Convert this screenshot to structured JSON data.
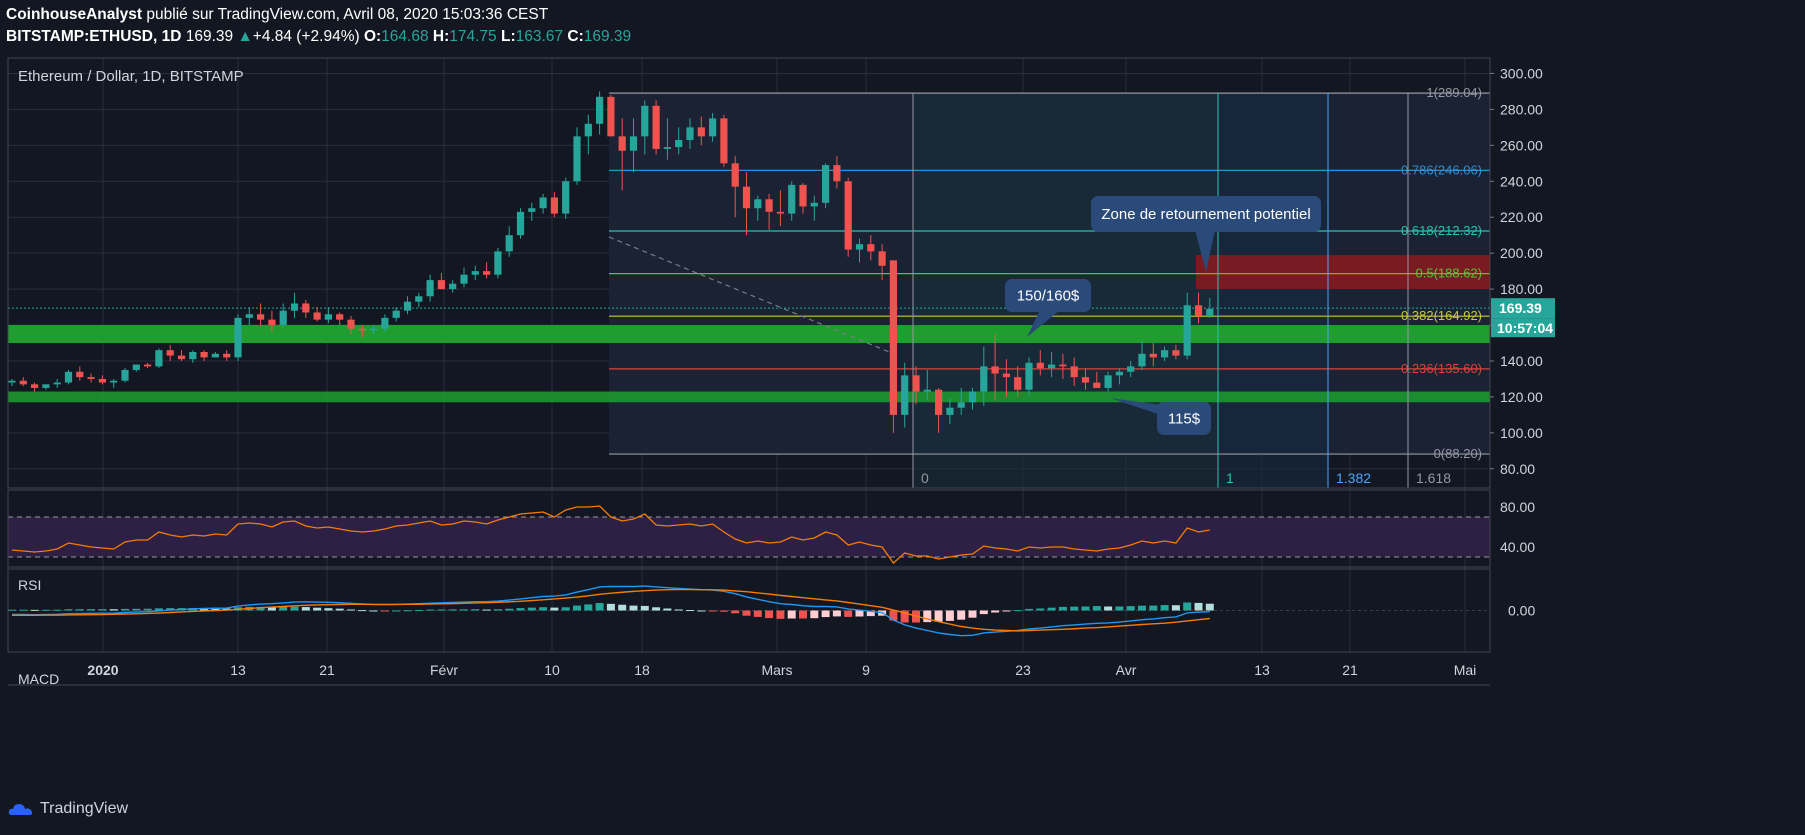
{
  "header": {
    "publisher": "CoinhouseAnalyst",
    "published_text": "publié sur TradingView.com, Avril 08, 2020 15:03:36 CEST",
    "symbol": "BITSTAMP:ETHUSD, 1D",
    "last": "169.39",
    "change_arrow": "▲",
    "change": "+4.84 (+2.94%)",
    "o_label": "O:",
    "o_value": "164.68",
    "h_label": "H:",
    "h_value": "174.75",
    "l_label": "L:",
    "l_value": "163.67",
    "c_label": "C:",
    "c_value": "169.39"
  },
  "pane_titles": {
    "main": "Ethereum / Dollar, 1D, BITSTAMP",
    "rsi": "RSI",
    "macd": "MACD"
  },
  "price_axis": {
    "ticks": [
      "300.00",
      "280.00",
      "260.00",
      "240.00",
      "220.00",
      "200.00",
      "180.00",
      "160.00",
      "140.00",
      "120.00",
      "100.00",
      "80.00"
    ],
    "last_price_label": "169.39",
    "countdown_label": "10:57:04"
  },
  "rsi_axis": {
    "ticks": [
      "80.00",
      "40.00"
    ]
  },
  "macd_axis": {
    "ticks": [
      "0.00"
    ]
  },
  "time_axis": {
    "labels": [
      "2020",
      "13",
      "21",
      "Févr",
      "10",
      "18",
      "Mars",
      "9",
      "23",
      "Avr",
      "13",
      "21",
      "Mai"
    ]
  },
  "fib_levels": [
    {
      "label": "1(289.04)",
      "price": 289.04,
      "color": "#9598a1"
    },
    {
      "label": "0.786(246.06)",
      "price": 246.06,
      "color": "#2e8fd6"
    },
    {
      "label": "0.618(212.32)",
      "price": 212.32,
      "color": "#26c6b0"
    },
    {
      "label": "0.5(188.62)",
      "price": 188.62,
      "color": "#5bbf3a"
    },
    {
      "label": "0.382(164.92)",
      "price": 164.92,
      "color": "#c8c83a"
    },
    {
      "label": "0.236(135.60)",
      "price": 135.6,
      "color": "#d9443c"
    },
    {
      "label": "0(88.20)",
      "price": 88.2,
      "color": "#9598a1"
    }
  ],
  "fib_time": [
    {
      "label": "0",
      "color": "#9598a1"
    },
    {
      "label": "1",
      "color": "#26c6b0"
    },
    {
      "label": "1.382",
      "color": "#4da3ff"
    },
    {
      "label": "1.618",
      "color": "#9598a1"
    }
  ],
  "annotations": {
    "zone_callout": "Zone de retournement potentiel",
    "resistance_callout": "150/160$",
    "support_callout": "115$"
  },
  "colors": {
    "bull": "#26a69a",
    "bear": "#ef5350",
    "support_zone": "#1f9e2f",
    "reversal_zone": "#8b1a1f",
    "callout": "#2a4a7a",
    "rsi_line": "#f57c00",
    "macd_line": "#2196f3",
    "signal_line": "#f57c00"
  },
  "footer": {
    "brand": "TradingView"
  },
  "chart_data": {
    "type": "candlestick",
    "title": "Ethereum / Dollar, 1D, BITSTAMP",
    "x_range": [
      "2019-12-24",
      "2020-04-08"
    ],
    "ylim": [
      75,
      310
    ],
    "support_zones": [
      [
        150,
        160
      ],
      [
        117,
        123
      ]
    ],
    "reversal_zone": [
      180,
      199
    ],
    "candles": [
      [
        128,
        130,
        126,
        129
      ],
      [
        129,
        131,
        126,
        127
      ],
      [
        127,
        128,
        123,
        125
      ],
      [
        125,
        127,
        124,
        127
      ],
      [
        127,
        130,
        125,
        128
      ],
      [
        128,
        135,
        127,
        134
      ],
      [
        134,
        137,
        129,
        131
      ],
      [
        131,
        133,
        128,
        130
      ],
      [
        130,
        132,
        127,
        128
      ],
      [
        128,
        130,
        125,
        129
      ],
      [
        129,
        136,
        128,
        135
      ],
      [
        135,
        138,
        134,
        138
      ],
      [
        138,
        139,
        136,
        137
      ],
      [
        137,
        147,
        136,
        146
      ],
      [
        146,
        149,
        140,
        143
      ],
      [
        143,
        146,
        140,
        141
      ],
      [
        141,
        146,
        139,
        145
      ],
      [
        145,
        146,
        140,
        142
      ],
      [
        142,
        145,
        142,
        144
      ],
      [
        144,
        146,
        140,
        142
      ],
      [
        142,
        166,
        140,
        164
      ],
      [
        164,
        170,
        160,
        166
      ],
      [
        166,
        172,
        160,
        163
      ],
      [
        163,
        168,
        156,
        160
      ],
      [
        160,
        172,
        158,
        168
      ],
      [
        168,
        178,
        164,
        172
      ],
      [
        172,
        174,
        164,
        167
      ],
      [
        167,
        170,
        162,
        163
      ],
      [
        163,
        170,
        161,
        166
      ],
      [
        166,
        167,
        160,
        163
      ],
      [
        163,
        165,
        155,
        158
      ],
      [
        158,
        160,
        153,
        157
      ],
      [
        157,
        160,
        155,
        158
      ],
      [
        158,
        166,
        156,
        164
      ],
      [
        164,
        170,
        162,
        168
      ],
      [
        168,
        176,
        166,
        173
      ],
      [
        173,
        178,
        170,
        176
      ],
      [
        176,
        188,
        173,
        185
      ],
      [
        185,
        189,
        180,
        180
      ],
      [
        180,
        185,
        178,
        183
      ],
      [
        183,
        192,
        181,
        188
      ],
      [
        188,
        193,
        185,
        190
      ],
      [
        190,
        195,
        186,
        188
      ],
      [
        188,
        203,
        186,
        201
      ],
      [
        201,
        215,
        198,
        210
      ],
      [
        210,
        225,
        208,
        223
      ],
      [
        223,
        228,
        218,
        225
      ],
      [
        225,
        233,
        222,
        231
      ],
      [
        231,
        234,
        220,
        222
      ],
      [
        222,
        242,
        219,
        240
      ],
      [
        240,
        270,
        238,
        265
      ],
      [
        265,
        277,
        255,
        272
      ],
      [
        272,
        290,
        266,
        287
      ],
      [
        287,
        288,
        265,
        265
      ],
      [
        265,
        275,
        235,
        257
      ],
      [
        257,
        275,
        245,
        265
      ],
      [
        265,
        285,
        255,
        282
      ],
      [
        282,
        285,
        255,
        258
      ],
      [
        258,
        275,
        252,
        259
      ],
      [
        259,
        270,
        255,
        263
      ],
      [
        263,
        275,
        258,
        270
      ],
      [
        270,
        276,
        260,
        265
      ],
      [
        265,
        278,
        262,
        275
      ],
      [
        275,
        277,
        248,
        250
      ],
      [
        250,
        254,
        220,
        237
      ],
      [
        237,
        245,
        210,
        225
      ],
      [
        225,
        232,
        218,
        230
      ],
      [
        230,
        233,
        213,
        223
      ],
      [
        223,
        235,
        215,
        222
      ],
      [
        222,
        240,
        218,
        238
      ],
      [
        238,
        239,
        222,
        226
      ],
      [
        226,
        232,
        218,
        228
      ],
      [
        228,
        250,
        225,
        249
      ],
      [
        249,
        254,
        236,
        240
      ],
      [
        240,
        242,
        198,
        202
      ],
      [
        202,
        208,
        195,
        205
      ],
      [
        205,
        210,
        196,
        201
      ],
      [
        201,
        205,
        185,
        193
      ],
      [
        196,
        196,
        100,
        110
      ],
      [
        110,
        139,
        103,
        132
      ],
      [
        132,
        137,
        116,
        123
      ],
      [
        123,
        135,
        118,
        124
      ],
      [
        124,
        125,
        100,
        110
      ],
      [
        110,
        119,
        105,
        114
      ],
      [
        114,
        125,
        110,
        117
      ],
      [
        117,
        125,
        113,
        123
      ],
      [
        123,
        148,
        115,
        137
      ],
      [
        137,
        155,
        118,
        133
      ],
      [
        133,
        141,
        120,
        131
      ],
      [
        131,
        137,
        120,
        124
      ],
      [
        124,
        142,
        121,
        139
      ],
      [
        139,
        146,
        132,
        136
      ],
      [
        136,
        145,
        131,
        138
      ],
      [
        138,
        144,
        130,
        137
      ],
      [
        137,
        142,
        126,
        131
      ],
      [
        131,
        136,
        124,
        128
      ],
      [
        128,
        134,
        125,
        125
      ],
      [
        125,
        134,
        123,
        132
      ],
      [
        132,
        136,
        127,
        134
      ],
      [
        134,
        140,
        131,
        137
      ],
      [
        137,
        151,
        135,
        144
      ],
      [
        144,
        150,
        137,
        142
      ],
      [
        142,
        148,
        140,
        146
      ],
      [
        146,
        149,
        141,
        143
      ],
      [
        143,
        178,
        141,
        171
      ],
      [
        171,
        178,
        161,
        165
      ],
      [
        165,
        175,
        164,
        169
      ]
    ],
    "rsi": [
      37,
      36,
      35,
      36,
      38,
      44,
      42,
      40,
      39,
      38,
      45,
      47,
      47,
      55,
      52,
      50,
      52,
      51,
      53,
      52,
      63,
      64,
      63,
      60,
      65,
      66,
      61,
      59,
      60,
      58,
      56,
      55,
      56,
      58,
      61,
      62,
      64,
      66,
      62,
      63,
      66,
      65,
      63,
      67,
      70,
      73,
      74,
      75,
      70,
      77,
      80,
      80,
      81,
      70,
      66,
      68,
      73,
      62,
      61,
      62,
      63,
      61,
      63,
      55,
      48,
      44,
      46,
      44,
      45,
      50,
      47,
      49,
      55,
      52,
      42,
      45,
      42,
      40,
      24,
      34,
      31,
      31,
      28,
      30,
      32,
      33,
      41,
      39,
      38,
      36,
      40,
      39,
      40,
      40,
      38,
      37,
      36,
      38,
      39,
      42,
      46,
      44,
      46,
      44,
      59,
      55,
      57
    ],
    "macd": [
      -5,
      -5,
      -5.2,
      -5,
      -4.8,
      -4,
      -3.8,
      -3.5,
      -3.3,
      -3.2,
      -2.5,
      -2,
      -1.5,
      -0.5,
      0.5,
      1.2,
      2,
      2.5,
      2.8,
      3,
      5.5,
      7,
      8,
      8.5,
      9.5,
      10.5,
      10.8,
      10.5,
      10.2,
      9.8,
      9,
      8.2,
      7.6,
      7.4,
      7.6,
      8,
      8.5,
      9.2,
      9.6,
      10,
      10.5,
      11,
      11,
      11.8,
      13,
      14.5,
      16,
      17.5,
      18,
      19.5,
      23,
      26,
      29.5,
      30,
      30,
      30,
      30.5,
      29.5,
      28.5,
      27.5,
      26.8,
      26,
      25.6,
      24,
      21,
      17,
      14,
      11,
      8.5,
      7.5,
      6,
      5,
      5,
      4.5,
      2,
      0.5,
      -1,
      -2.5,
      -12,
      -18,
      -22,
      -25,
      -28,
      -30,
      -31.5,
      -31,
      -28,
      -27,
      -26,
      -25,
      -23,
      -22,
      -20.5,
      -19,
      -18,
      -17,
      -16,
      -15.5,
      -14.5,
      -13,
      -11.5,
      -10.5,
      -9,
      -8,
      -3,
      -2,
      -1.5
    ],
    "signal": [
      -6,
      -6,
      -6,
      -5.9,
      -5.8,
      -5.6,
      -5.4,
      -5.2,
      -5,
      -4.8,
      -4.5,
      -4.1,
      -3.7,
      -3.2,
      -2.5,
      -1.8,
      -1.2,
      -0.5,
      0,
      0.6,
      1.5,
      2.5,
      3.5,
      4.3,
      5,
      5.8,
      6.5,
      7,
      7.3,
      7.5,
      7.7,
      7.7,
      7.6,
      7.6,
      7.6,
      7.7,
      7.8,
      8,
      8.3,
      8.6,
      9,
      9.4,
      9.8,
      10.2,
      10.8,
      11.5,
      12.4,
      13.4,
      14.4,
      15.5,
      16.8,
      18.4,
      20.2,
      21.7,
      22.8,
      23.9,
      24.8,
      25.5,
      26,
      26.2,
      26.2,
      26,
      25.8,
      25.5,
      24.5,
      23.5,
      22,
      20.5,
      18.9,
      17.5,
      16,
      14.6,
      13.2,
      11.9,
      10,
      8,
      6,
      4,
      0.5,
      -3,
      -7,
      -10.5,
      -14,
      -17,
      -20,
      -22,
      -23.5,
      -24.5,
      -25,
      -25.5,
      -25,
      -24.5,
      -24,
      -23.5,
      -22.8,
      -22,
      -21.5,
      -20.5,
      -19.5,
      -18.5,
      -17.5,
      -16.6,
      -15.8,
      -14.6,
      -13,
      -11.5,
      -10
    ]
  }
}
